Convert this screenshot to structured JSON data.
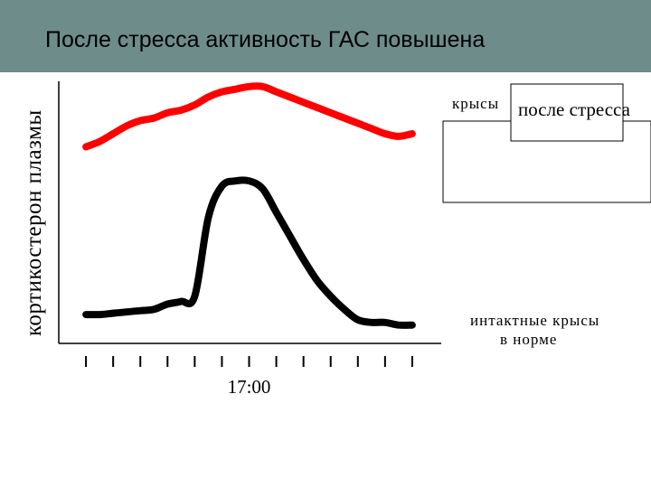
{
  "slide": {
    "title": "После стресса активность ГАС повышена"
  },
  "chart_data": {
    "type": "line",
    "title": "",
    "ylabel": "кортикостерон плазмы",
    "xlabel": "",
    "x_tick_label": "17:00",
    "x_tick_label_at": 7,
    "x_ticks": [
      1,
      2,
      3,
      4,
      5,
      6,
      7,
      8,
      9,
      10,
      11,
      12,
      13
    ],
    "xlim": [
      0,
      13.8
    ],
    "ylim": [
      0,
      100
    ],
    "y_ticks_shown": false,
    "x": [
      1,
      1.5,
      2,
      2.5,
      3,
      3.5,
      4,
      4.5,
      5,
      5.5,
      6,
      6.5,
      7,
      7.5,
      8,
      8.5,
      9,
      9.5,
      10,
      10.5,
      11,
      11.5,
      12,
      12.5,
      13
    ],
    "series": [
      {
        "name": "крысы после стресса",
        "color": "#ff0000",
        "values": [
          75,
          77,
          80,
          83,
          85,
          86,
          88,
          89,
          91,
          94,
          96,
          97,
          98,
          98,
          96,
          94,
          92,
          90,
          88,
          86,
          84,
          82,
          80,
          79,
          80
        ]
      },
      {
        "name": "интактные крысы в норме",
        "color": "#000000",
        "values": [
          11,
          11,
          11.5,
          12,
          12.5,
          13,
          15,
          16,
          18,
          48,
          60,
          62,
          62,
          59,
          50,
          41,
          32,
          24,
          18,
          13,
          9,
          8,
          8,
          7,
          7
        ]
      }
    ],
    "legend_placement": "right",
    "legend_labels": {
      "stressed_prefix": "крысы",
      "stressed_highlight": "после стресса",
      "intact_line1": "интактные крысы",
      "intact_line2": "в норме"
    }
  }
}
